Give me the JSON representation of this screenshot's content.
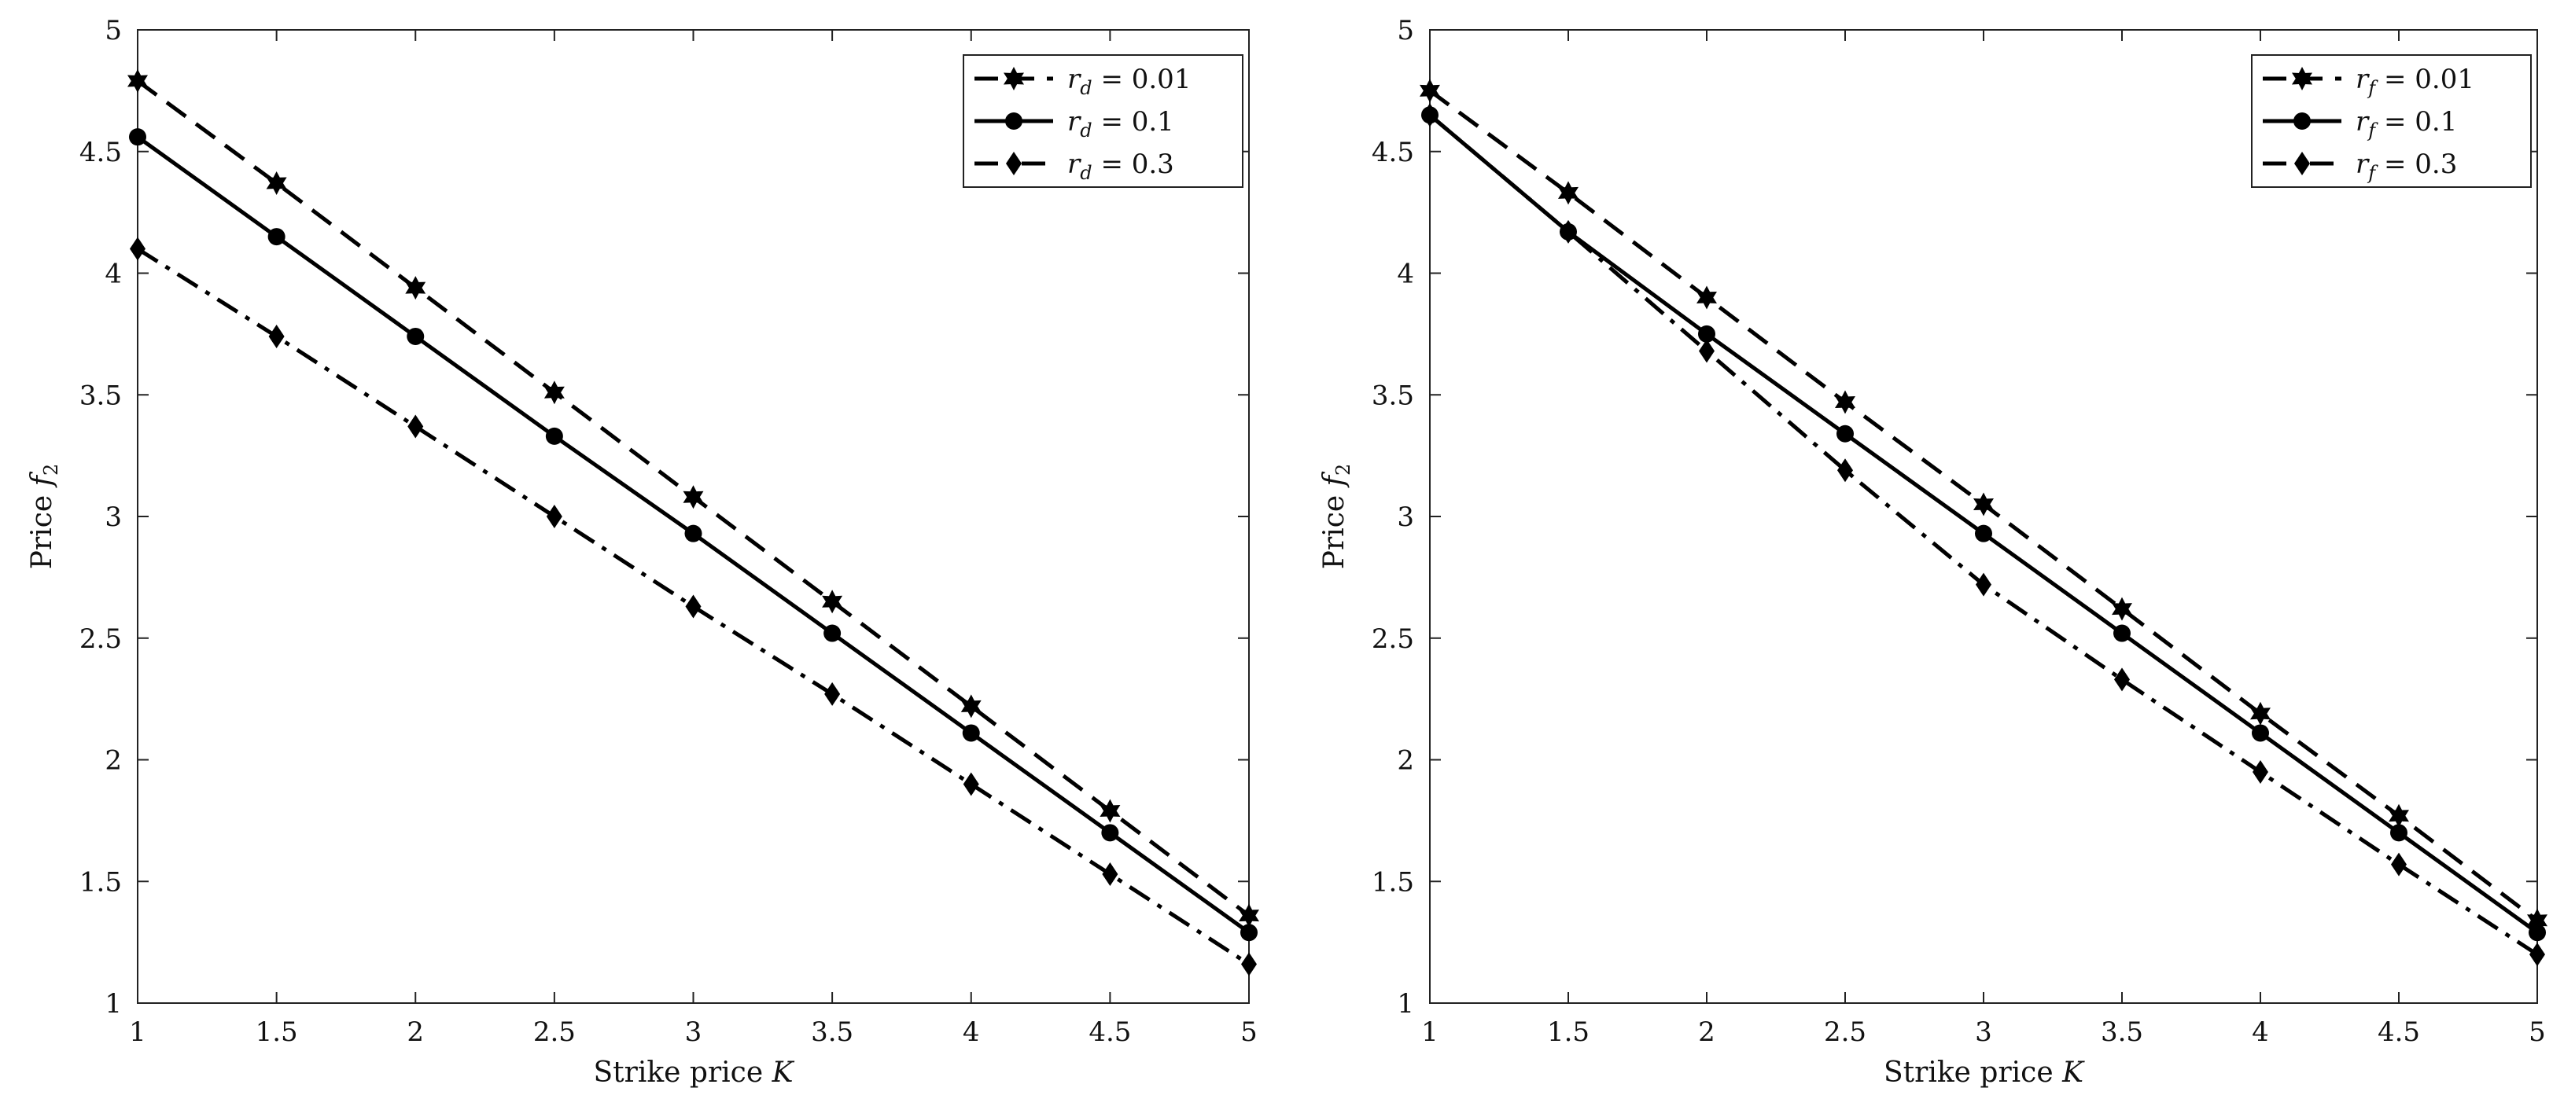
{
  "chart_data": [
    {
      "type": "line",
      "xlabel": "Strike price K",
      "ylabel": "Price f2",
      "xlim": [
        1,
        5
      ],
      "ylim": [
        1,
        5
      ],
      "xticks": [
        "1",
        "1.5",
        "2",
        "2.5",
        "3",
        "3.5",
        "4",
        "4.5",
        "5"
      ],
      "yticks": [
        "1",
        "1.5",
        "2",
        "2.5",
        "3",
        "3.5",
        "4",
        "4.5",
        "5"
      ],
      "grid": false,
      "legend_position": "top-right",
      "x": [
        1,
        1.5,
        2,
        2.5,
        3,
        3.5,
        4,
        4.5,
        5
      ],
      "series": [
        {
          "name": "r_d = 0.01",
          "style": "dashed",
          "marker": "hexagram",
          "values": [
            4.79,
            4.37,
            3.94,
            3.51,
            3.08,
            2.65,
            2.22,
            1.79,
            1.36
          ]
        },
        {
          "name": "r_d = 0.1",
          "style": "solid",
          "marker": "circle",
          "values": [
            4.56,
            4.15,
            3.74,
            3.33,
            2.93,
            2.52,
            2.11,
            1.7,
            1.29
          ]
        },
        {
          "name": "r_d = 0.3",
          "style": "dash-dot",
          "marker": "diamond",
          "values": [
            4.1,
            3.74,
            3.37,
            3.0,
            2.63,
            2.27,
            1.9,
            1.53,
            1.16
          ]
        }
      ]
    },
    {
      "type": "line",
      "xlabel": "Strike price K",
      "ylabel": "Price f2",
      "xlim": [
        1,
        5
      ],
      "ylim": [
        1,
        5
      ],
      "xticks": [
        "1",
        "1.5",
        "2",
        "2.5",
        "3",
        "3.5",
        "4",
        "4.5",
        "5"
      ],
      "yticks": [
        "1",
        "1.5",
        "2",
        "2.5",
        "3",
        "3.5",
        "4",
        "4.5",
        "5"
      ],
      "grid": false,
      "legend_position": "top-right",
      "x": [
        1,
        1.5,
        2,
        2.5,
        3,
        3.5,
        4,
        4.5,
        5
      ],
      "series": [
        {
          "name": "r_f = 0.01",
          "style": "dashed",
          "marker": "hexagram",
          "values": [
            4.75,
            4.33,
            3.9,
            3.47,
            3.05,
            2.62,
            2.19,
            1.77,
            1.34
          ]
        },
        {
          "name": "r_f = 0.1",
          "style": "solid",
          "marker": "circle",
          "values": [
            4.65,
            4.17,
            3.75,
            3.34,
            2.93,
            2.52,
            2.11,
            1.7,
            1.29
          ]
        },
        {
          "name": "r_f = 0.3",
          "style": "dash-dot",
          "marker": "diamond",
          "values": [
            4.65,
            4.17,
            3.68,
            3.19,
            2.72,
            2.33,
            1.95,
            1.57,
            1.2
          ]
        }
      ]
    }
  ]
}
